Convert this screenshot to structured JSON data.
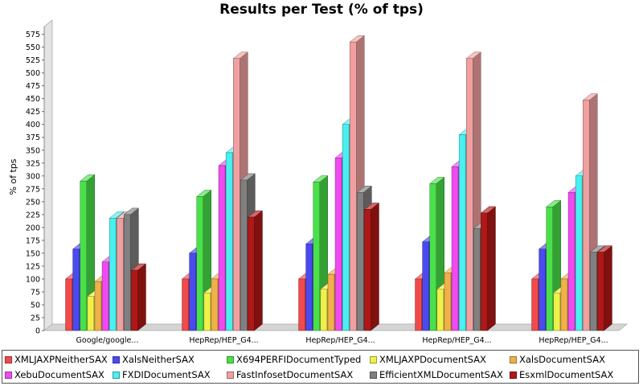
{
  "chart_data": {
    "type": "bar",
    "title": "Results per Test (% of tps)",
    "ylabel": "% of tps",
    "xlabel": "",
    "ylim": [
      0,
      590
    ],
    "yticks": [
      0,
      25,
      50,
      75,
      100,
      125,
      150,
      175,
      200,
      225,
      250,
      275,
      300,
      325,
      350,
      375,
      400,
      425,
      450,
      475,
      500,
      525,
      550,
      575
    ],
    "grid": false,
    "legend_position": "bottom",
    "categories": [
      "Google/google...",
      "HepRep/HEP_G4...",
      "HepRep/HEP_G4...",
      "HepRep/HEP_G4...",
      "HepRep/HEP_G4..."
    ],
    "series": [
      {
        "name": "XMLJAXPNeitherSAX",
        "color": "#f04a4a",
        "values": [
          100,
          100,
          100,
          100,
          100
        ]
      },
      {
        "name": "XalsNeitherSAX",
        "color": "#4a4af0",
        "values": [
          158,
          150,
          168,
          172,
          158
        ]
      },
      {
        "name": "X694PERFIDocumentTyped",
        "color": "#4ae04a",
        "values": [
          290,
          260,
          288,
          285,
          240
        ]
      },
      {
        "name": "XMLJAXPDocumentSAX",
        "color": "#f0f04a",
        "values": [
          66,
          73,
          80,
          80,
          73
        ]
      },
      {
        "name": "XalsDocumentSAX",
        "color": "#f0b04a",
        "values": [
          95,
          100,
          109,
          112,
          100
        ]
      },
      {
        "name": "XebuDocumentSAX",
        "color": "#f04af0",
        "values": [
          133,
          320,
          335,
          318,
          268
        ]
      },
      {
        "name": "FXDIDocumentSAX",
        "color": "#4af0f0",
        "values": [
          218,
          345,
          400,
          380,
          300
        ]
      },
      {
        "name": "FastInfosetDocumentSAX",
        "color": "#f0a0a0",
        "values": [
          218,
          528,
          560,
          528,
          447
        ]
      },
      {
        "name": "EfficientXMLDocumentSAX",
        "color": "#808080",
        "values": [
          225,
          292,
          268,
          198,
          152
        ]
      },
      {
        "name": "EsxmlDocumentSAX",
        "color": "#b01818",
        "values": [
          117,
          220,
          235,
          228,
          152
        ]
      }
    ]
  }
}
